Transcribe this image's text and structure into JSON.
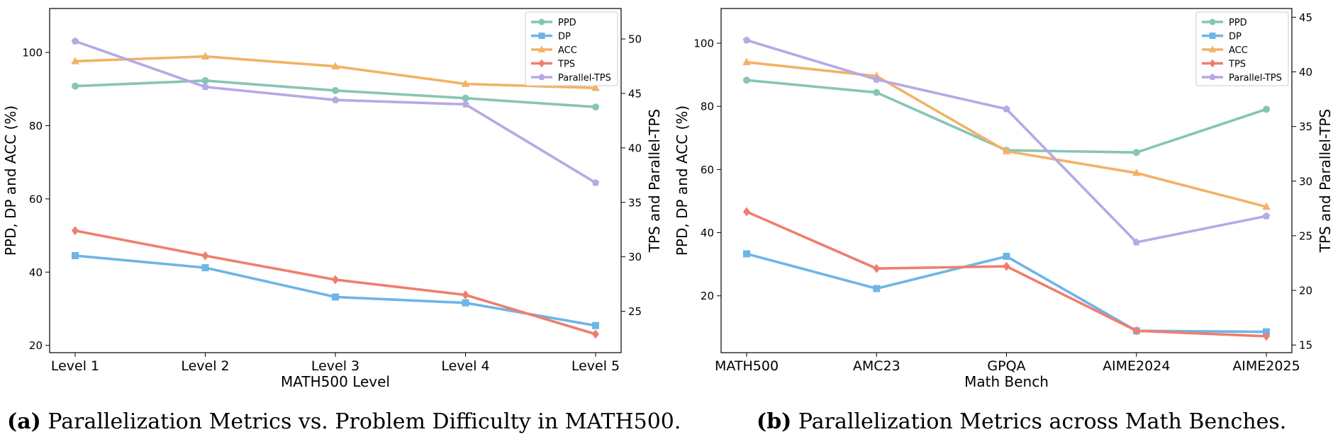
{
  "captions": [
    {
      "tag": "(a)",
      "text": "Parallelization Metrics vs. Problem Difficulty in MATH500."
    },
    {
      "tag": "(b)",
      "text": "Parallelization Metrics across Math Benches."
    }
  ],
  "colors": {
    "PPD": "#86c5b5",
    "DP": "#6cb5e8",
    "ACC": "#f2b266",
    "TPS": "#ef7e6e",
    "Parallel-TPS": "#b7a8e6"
  },
  "chart_data": [
    {
      "type": "line",
      "xlabel": "MATH500 Level",
      "ylabel": "PPD, DP and ACC (%)",
      "y2label": "TPS and Parallel-TPS",
      "categories": [
        "Level 1",
        "Level 2",
        "Level 3",
        "Level 4",
        "Level 5"
      ],
      "ylim": [
        18,
        112
      ],
      "y2lim": [
        21.2,
        52.8
      ],
      "yticks": [
        20,
        40,
        60,
        80,
        100
      ],
      "y2ticks": [
        25,
        30,
        35,
        40,
        45,
        50
      ],
      "legend": "top-right",
      "series": [
        {
          "name": "PPD",
          "axis": "left",
          "marker": "circle",
          "values": [
            90.8,
            92.3,
            89.6,
            87.5,
            85.1
          ]
        },
        {
          "name": "DP",
          "axis": "left",
          "marker": "square",
          "values": [
            44.5,
            41.2,
            33.2,
            31.6,
            25.4
          ]
        },
        {
          "name": "ACC",
          "axis": "left",
          "marker": "triangle",
          "values": [
            97.6,
            98.9,
            96.2,
            91.4,
            90.3
          ]
        },
        {
          "name": "TPS",
          "axis": "right",
          "marker": "diamond",
          "values": [
            32.4,
            30.1,
            27.9,
            26.5,
            22.9
          ]
        },
        {
          "name": "Parallel-TPS",
          "axis": "right",
          "marker": "pentagon",
          "values": [
            49.8,
            45.6,
            44.4,
            44.0,
            36.8
          ]
        }
      ]
    },
    {
      "type": "line",
      "xlabel": "Math Bench",
      "ylabel": "PPD, DP and ACC (%)",
      "y2label": "TPS and Parallel-TPS",
      "categories": [
        "MATH500",
        "AMC23",
        "GPQA",
        "AIME2024",
        "AIME2025"
      ],
      "ylim": [
        2,
        111
      ],
      "y2lim": [
        14.3,
        45.8
      ],
      "yticks": [
        20,
        40,
        60,
        80,
        100
      ],
      "y2ticks": [
        15,
        20,
        25,
        30,
        35,
        40,
        45
      ],
      "legend": "top-right",
      "series": [
        {
          "name": "PPD",
          "axis": "left",
          "marker": "circle",
          "values": [
            88.3,
            84.4,
            66.1,
            65.4,
            79.1
          ]
        },
        {
          "name": "DP",
          "axis": "left",
          "marker": "square",
          "values": [
            33.3,
            22.3,
            32.5,
            8.9,
            8.6
          ]
        },
        {
          "name": "ACC",
          "axis": "left",
          "marker": "triangle",
          "values": [
            94.0,
            89.6,
            65.8,
            58.9,
            48.2
          ]
        },
        {
          "name": "TPS",
          "axis": "right",
          "marker": "diamond",
          "values": [
            27.2,
            22.0,
            22.2,
            16.3,
            15.8
          ]
        },
        {
          "name": "Parallel-TPS",
          "axis": "right",
          "marker": "pentagon",
          "values": [
            42.9,
            39.3,
            36.6,
            24.4,
            26.8
          ]
        }
      ]
    }
  ]
}
